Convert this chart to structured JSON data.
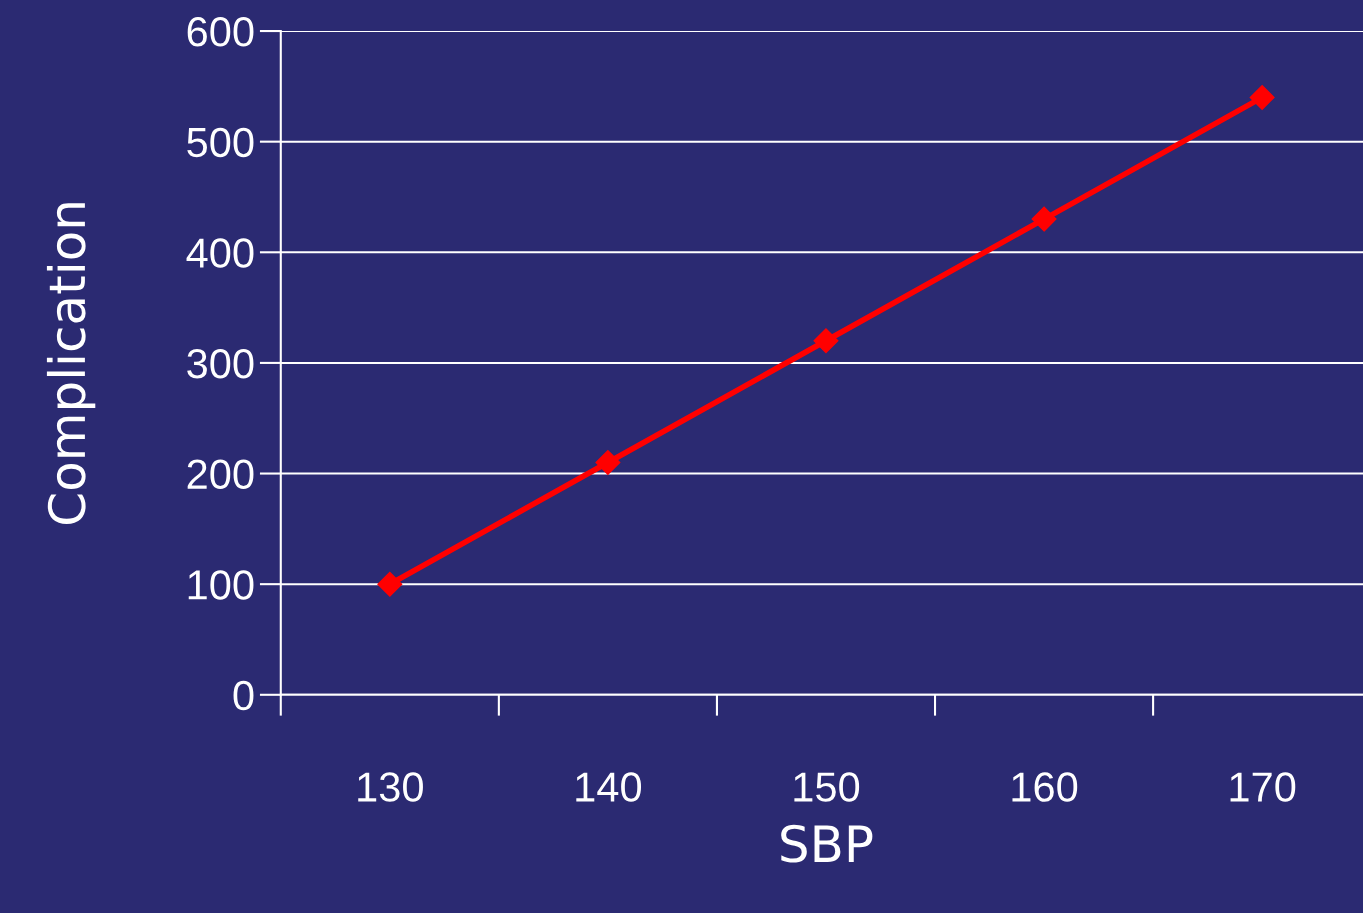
{
  "chart_data": {
    "type": "line",
    "xlabel": "SBP",
    "ylabel": "Complication",
    "categories": [
      "130",
      "140",
      "150",
      "160",
      "170"
    ],
    "series": [
      {
        "color": "#ff0000",
        "values": [
          100,
          210,
          320,
          430,
          540
        ]
      }
    ],
    "ylim": [
      0,
      600
    ],
    "yticks": [
      0,
      100,
      200,
      300,
      400,
      500,
      600
    ],
    "grid": "y",
    "marker": "diamond",
    "line_style": "solid",
    "legend": false
  }
}
